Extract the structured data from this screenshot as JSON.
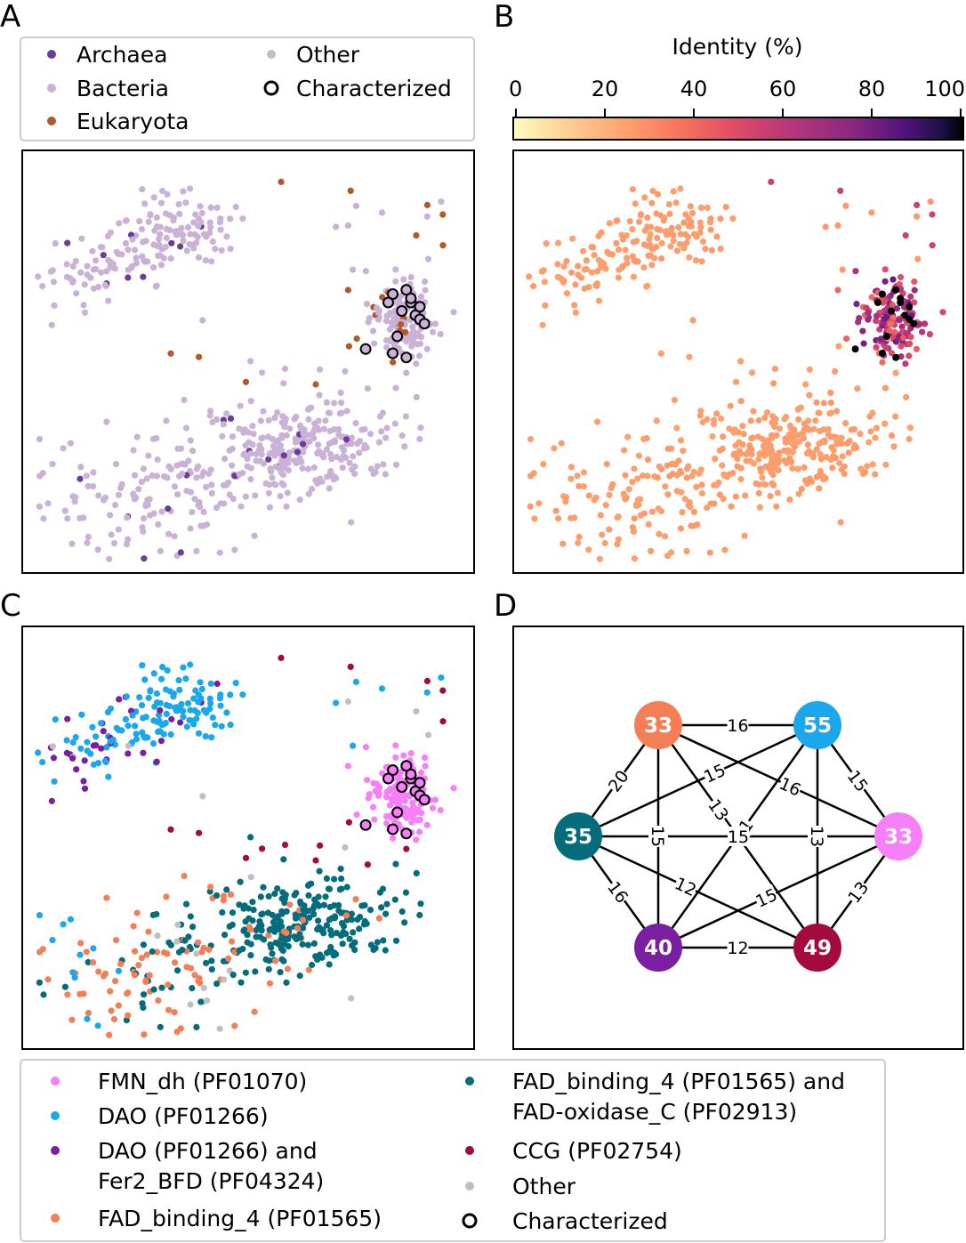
{
  "panels": {
    "a": "A",
    "b": "B",
    "c": "C",
    "d": "D"
  },
  "legend_a": {
    "items": [
      {
        "label": "Archaea",
        "color": "#6a3d9a",
        "marker": "dot"
      },
      {
        "label": "Bacteria",
        "color": "#cab2d6",
        "marker": "dot"
      },
      {
        "label": "Eukaryota",
        "color": "#b15928",
        "marker": "dot"
      },
      {
        "label": "Other",
        "color": "#c0c0c0",
        "marker": "dot"
      },
      {
        "label": "Characterized",
        "color": "#000000",
        "marker": "ring"
      }
    ]
  },
  "legend_c": {
    "items": [
      {
        "lines": [
          "FMN_dh (PF01070)"
        ],
        "color": "#f77ff7",
        "marker": "dot"
      },
      {
        "lines": [
          "DAO (PF01266)"
        ],
        "color": "#1aa7ec",
        "marker": "dot"
      },
      {
        "lines": [
          "DAO (PF01266) and",
          "Fer2_BFD (PF04324)"
        ],
        "color": "#7b1fa2",
        "marker": "dot"
      },
      {
        "lines": [
          "FAD_binding_4 (PF01565)"
        ],
        "color": "#f47f57",
        "marker": "dot"
      },
      {
        "lines": [
          "FAD_binding_4 (PF01565) and",
          "FAD-oxidase_C (PF02913)"
        ],
        "color": "#046c7b",
        "marker": "dot"
      },
      {
        "lines": [
          "CCG (PF02754)"
        ],
        "color": "#a50a3e",
        "marker": "dot"
      },
      {
        "lines": [
          "Other"
        ],
        "color": "#c0c0c0",
        "marker": "dot"
      },
      {
        "lines": [
          "Characterized"
        ],
        "color": "#000000",
        "marker": "ring"
      }
    ]
  },
  "chart_data": [
    {
      "type": "scatter",
      "panel": "A",
      "grid": false,
      "coloring": "domain of life",
      "clusters": [
        {
          "label_color": "Bacteria",
          "center": [
            0.32,
            0.21
          ],
          "spread": [
            0.09,
            0.05
          ]
        },
        {
          "label_color": "Bacteria",
          "center": [
            0.14,
            0.3
          ],
          "spread": [
            0.06,
            0.04
          ]
        },
        {
          "label_color": "Bacteria",
          "center": [
            0.6,
            0.72
          ],
          "spread": [
            0.14,
            0.07
          ]
        },
        {
          "label_color": "Bacteria",
          "center": [
            0.32,
            0.82
          ],
          "spread": [
            0.16,
            0.09
          ]
        },
        {
          "label_color": "Bacteria",
          "center": [
            0.84,
            0.39
          ],
          "spread": [
            0.04,
            0.05
          ]
        }
      ],
      "categories": [
        "Archaea",
        "Bacteria",
        "Eukaryota",
        "Other",
        "Characterized"
      ]
    },
    {
      "type": "scatter",
      "panel": "B",
      "grid": false,
      "coloring": "identity",
      "colorbar": {
        "title": "Identity (%)",
        "ticks": [
          0,
          20,
          40,
          60,
          80,
          100
        ],
        "range": [
          0,
          100
        ],
        "colormap": "magma_r"
      }
    },
    {
      "type": "scatter",
      "panel": "C",
      "grid": false,
      "coloring": "protein family",
      "categories": [
        "FMN_dh (PF01070)",
        "DAO (PF01266)",
        "DAO (PF01266) and Fer2_BFD (PF04324)",
        "FAD_binding_4 (PF01565)",
        "FAD_binding_4 (PF01565) and FAD-oxidase_C (PF02913)",
        "CCG (PF02754)",
        "Other",
        "Characterized"
      ]
    },
    {
      "type": "network",
      "panel": "D",
      "nodes": [
        {
          "id": "fad4",
          "value": "33",
          "color": "#f47f57"
        },
        {
          "id": "dao",
          "value": "55",
          "color": "#1aa7ec"
        },
        {
          "id": "fmn",
          "value": "33",
          "color": "#f77ff7"
        },
        {
          "id": "ccg",
          "value": "49",
          "color": "#a50a3e"
        },
        {
          "id": "daofer",
          "value": "40",
          "color": "#7b1fa2"
        },
        {
          "id": "fadox",
          "value": "35",
          "color": "#046c7b"
        }
      ],
      "edges": [
        {
          "from": "fad4",
          "to": "dao",
          "weight": "16"
        },
        {
          "from": "fad4",
          "to": "fadox",
          "weight": "20"
        },
        {
          "from": "fad4",
          "to": "daofer",
          "weight": "15"
        },
        {
          "from": "fad4",
          "to": "fmn",
          "weight": "16"
        },
        {
          "from": "fad4",
          "to": "ccg",
          "weight": "13"
        },
        {
          "from": "dao",
          "to": "fmn",
          "weight": "15"
        },
        {
          "from": "dao",
          "to": "fadox",
          "weight": "15"
        },
        {
          "from": "dao",
          "to": "ccg",
          "weight": "13"
        },
        {
          "from": "dao",
          "to": "daofer",
          "weight": "21"
        },
        {
          "from": "fadox",
          "to": "fmn",
          "weight": "15"
        },
        {
          "from": "fadox",
          "to": "daofer",
          "weight": "16"
        },
        {
          "from": "fadox",
          "to": "ccg",
          "weight": "12"
        },
        {
          "from": "daofer",
          "to": "fmn",
          "weight": "15"
        },
        {
          "from": "daofer",
          "to": "ccg",
          "weight": "12"
        },
        {
          "from": "ccg",
          "to": "fmn",
          "weight": "13"
        }
      ]
    }
  ]
}
